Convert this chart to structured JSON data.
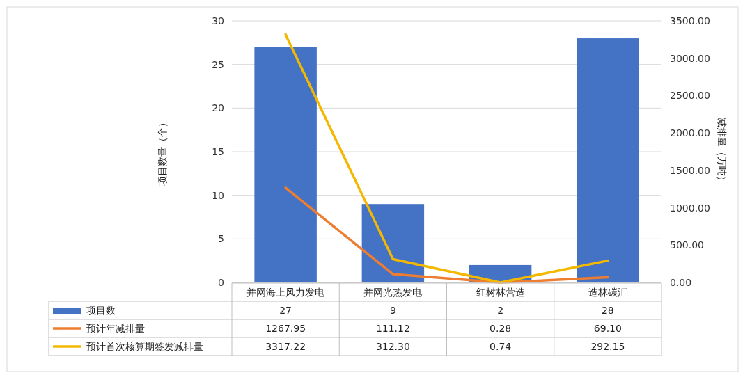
{
  "chart_data": {
    "type": "bar",
    "categories": [
      "并网海上风力发电",
      "并网光热发电",
      "红树林营造",
      "造林碳汇"
    ],
    "ylabel": "项目数量（个）",
    "y2label": "减排量（万吨）",
    "ylim": [
      0,
      30
    ],
    "yticks": [
      0,
      5,
      10,
      15,
      20,
      25,
      30
    ],
    "y2lim": [
      0,
      3500
    ],
    "y2ticks": [
      {
        "value": 0,
        "label": "0.00"
      },
      {
        "value": 500,
        "label": "500.00"
      },
      {
        "value": 1000,
        "label": "1000.00"
      },
      {
        "value": 1500,
        "label": "1500.00"
      },
      {
        "value": 2000,
        "label": "2000.00"
      },
      {
        "value": 2500,
        "label": "2500.00"
      },
      {
        "value": 3000,
        "label": "3000.00"
      },
      {
        "value": 3500,
        "label": "3500.00"
      }
    ],
    "grid": "y",
    "legend": "bottom",
    "series": [
      {
        "name": "项目数",
        "color": "#4472c4",
        "values": [
          27,
          9,
          2,
          28
        ],
        "value_labels": [
          "27",
          "9",
          "2",
          "28"
        ]
      },
      {
        "name": "预计年减排量",
        "type": "line",
        "axis": "y2",
        "color": "#ed7d31",
        "values": [
          1267.95,
          111.12,
          0.28,
          69.1
        ],
        "value_labels": [
          "1267.95",
          "111.12",
          "0.28",
          "69.10"
        ]
      },
      {
        "name": "预计首次核算期签发减排量",
        "type": "line",
        "axis": "y2",
        "color": "#f4b800",
        "values": [
          3317.22,
          312.3,
          0.74,
          292.15
        ],
        "value_labels": [
          "3317.22",
          "312.30",
          "0.74",
          "292.15"
        ]
      }
    ]
  }
}
